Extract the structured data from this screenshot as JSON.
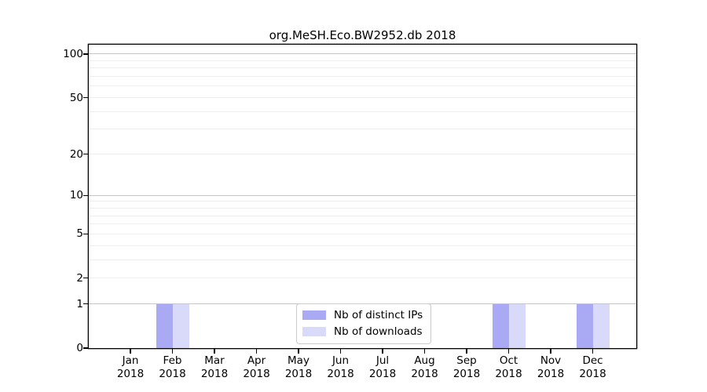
{
  "title": "org.MeSH.Eco.BW2952.db 2018",
  "legend": {
    "items": [
      {
        "label": "Nb of distinct IPs",
        "color": "#a9a9f4"
      },
      {
        "label": "Nb of downloads",
        "color": "#d9d9f9"
      }
    ]
  },
  "chart_data": {
    "type": "bar",
    "title": "org.MeSH.Eco.BW2952.db 2018",
    "x_categories": [
      {
        "month": "Jan",
        "year": "2018"
      },
      {
        "month": "Feb",
        "year": "2018"
      },
      {
        "month": "Mar",
        "year": "2018"
      },
      {
        "month": "Apr",
        "year": "2018"
      },
      {
        "month": "May",
        "year": "2018"
      },
      {
        "month": "Jun",
        "year": "2018"
      },
      {
        "month": "Jul",
        "year": "2018"
      },
      {
        "month": "Aug",
        "year": "2018"
      },
      {
        "month": "Sep",
        "year": "2018"
      },
      {
        "month": "Oct",
        "year": "2018"
      },
      {
        "month": "Nov",
        "year": "2018"
      },
      {
        "month": "Dec",
        "year": "2018"
      }
    ],
    "series": [
      {
        "name": "Nb of distinct IPs",
        "color": "#a9a9f4",
        "values": [
          0,
          1,
          0,
          0,
          0,
          0,
          0,
          0,
          0,
          1,
          0,
          1
        ]
      },
      {
        "name": "Nb of downloads",
        "color": "#d9d9f9",
        "values": [
          0,
          1,
          0,
          0,
          0,
          0,
          0,
          0,
          0,
          1,
          0,
          1
        ]
      }
    ],
    "y_scale": "log10(1+x)",
    "y_ticks": [
      0,
      1,
      2,
      5,
      10,
      20,
      50,
      100
    ],
    "gridlines": {
      "major": [
        1,
        10,
        100
      ],
      "minor": [
        2,
        3,
        4,
        5,
        6,
        7,
        8,
        9,
        20,
        30,
        40,
        50,
        60,
        70,
        80,
        90
      ]
    },
    "ylim": [
      0,
      116
    ],
    "grid": "horizontal",
    "legend_position": "bottom-center",
    "colors": {
      "major_grid": "#c6c6c6",
      "minor_grid": "#ededed",
      "axis": "#000000"
    }
  }
}
